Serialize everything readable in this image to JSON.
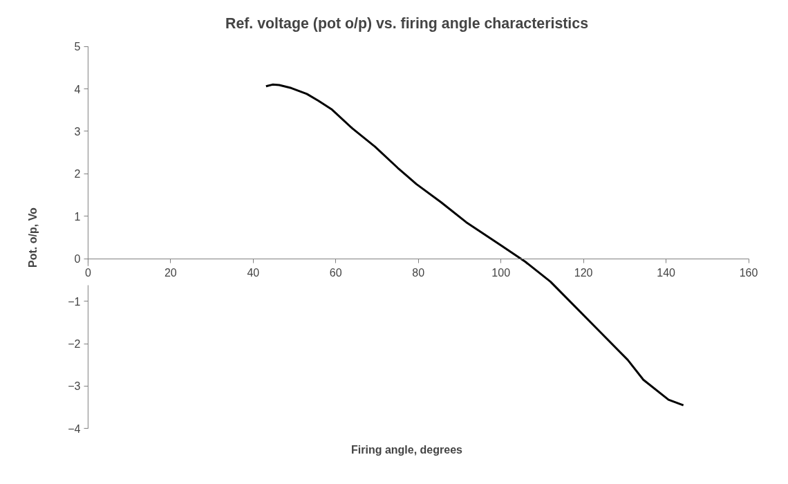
{
  "chart_data": {
    "type": "line",
    "title": "Ref. voltage (pot o/p) vs. firing angle characteristics",
    "xlabel": "Firing angle, degrees",
    "ylabel": "Pot. o/p, Vo",
    "x": [
      43.1,
      44.7,
      46.3,
      49.2,
      53.0,
      55.8,
      59.1,
      64.0,
      69.5,
      75.0,
      79.5,
      85.5,
      91.6,
      99.8,
      105.9,
      112.0,
      118.0,
      124.1,
      130.7,
      134.5,
      140.6,
      144.2
    ],
    "series": [
      {
        "color": "#000000",
        "values": [
          4.06,
          4.1,
          4.09,
          4.02,
          3.88,
          3.72,
          3.51,
          3.07,
          2.64,
          2.14,
          1.76,
          1.33,
          0.86,
          0.33,
          -0.07,
          -0.54,
          -1.13,
          -1.73,
          -2.38,
          -2.85,
          -3.32,
          -3.45
        ]
      }
    ],
    "xlim": [
      0,
      160
    ],
    "xticks": [
      0,
      20,
      40,
      60,
      80,
      100,
      120,
      140,
      160
    ],
    "ylim": [
      -4,
      5
    ],
    "yticks": [
      -4,
      -3,
      -2,
      -1,
      0,
      1,
      2,
      3,
      4,
      5
    ],
    "grid": false,
    "marker": "none",
    "line_style": "solid"
  }
}
